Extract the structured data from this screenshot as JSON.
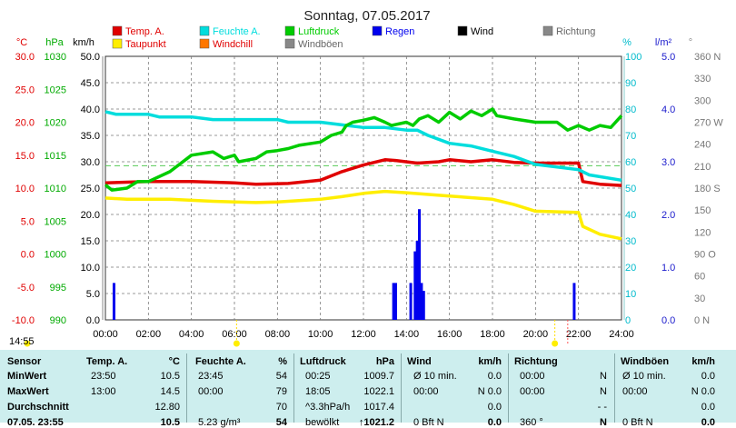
{
  "chart_data": {
    "type": "line",
    "title": "Sonntag, 07.05.2017",
    "x": {
      "ticks": [
        "00:00",
        "02:00",
        "04:00",
        "06:00",
        "08:00",
        "10:00",
        "12:00",
        "14:00",
        "16:00",
        "18:00",
        "20:00",
        "22:00",
        "24:00"
      ],
      "min": 0,
      "max": 24
    },
    "axes": {
      "temp": {
        "unit": "°C",
        "ticks": [
          "30.0",
          "25.0",
          "20.0",
          "15.0",
          "10.0",
          "5.0",
          "0.0",
          "-5.0",
          "-10.0"
        ],
        "color": "#e00000",
        "min": -10,
        "max": 30
      },
      "hpa": {
        "unit": "hPa",
        "ticks": [
          "1030",
          "1025",
          "1020",
          "1015",
          "1010",
          "1005",
          "1000",
          "995",
          "990"
        ],
        "color": "#00aa00",
        "min": 990,
        "max": 1030
      },
      "kmh": {
        "unit": "km/h",
        "ticks": [
          "50.0",
          "45.0",
          "40.0",
          "35.0",
          "30.0",
          "25.0",
          "20.0",
          "15.0",
          "10.0",
          "5.0",
          "0.0"
        ],
        "color": "#000000",
        "min": 0,
        "max": 50
      },
      "pct": {
        "unit": "%",
        "ticks": [
          "100",
          "90",
          "80",
          "70",
          "60",
          "50",
          "40",
          "30",
          "20",
          "10",
          "0"
        ],
        "color": "#00bbcc",
        "min": 0,
        "max": 100
      },
      "lm2": {
        "unit": "l/m²",
        "ticks": [
          "5.0",
          "4.0",
          "3.0",
          "2.0",
          "1.0",
          "0.0"
        ],
        "color": "#1a1acc",
        "min": 0,
        "max": 5
      },
      "deg": {
        "unit": "°",
        "ticks": [
          "360 N",
          "330",
          "300",
          "270 W",
          "240",
          "210",
          "180 S",
          "150",
          "120",
          "90 O",
          "60",
          "30",
          "0 N"
        ],
        "color": "#888888",
        "min": 0,
        "max": 360
      }
    },
    "legend": [
      {
        "label": "Temp. A.",
        "color": "#e00000"
      },
      {
        "label": "Feuchte A.",
        "color": "#00dddd"
      },
      {
        "label": "Luftdruck",
        "color": "#00cc00"
      },
      {
        "label": "Regen",
        "color": "#0000ee"
      },
      {
        "label": "Wind",
        "color": "#000000"
      },
      {
        "label": "Richtung",
        "color": "#888888"
      },
      {
        "label": "Taupunkt",
        "color": "#ffee00"
      },
      {
        "label": "Windchill",
        "color": "#ff7700"
      },
      {
        "label": "Windböen",
        "color": "#888888"
      }
    ],
    "series": [
      {
        "name": "Temp. A.",
        "axis": "temp",
        "color": "#e00000",
        "points": [
          [
            0,
            10.8
          ],
          [
            2,
            11
          ],
          [
            4,
            11
          ],
          [
            6,
            10.8
          ],
          [
            7,
            10.6
          ],
          [
            8.5,
            10.7
          ],
          [
            10,
            11.2
          ],
          [
            11,
            12.5
          ],
          [
            12,
            13.5
          ],
          [
            13,
            14.3
          ],
          [
            13.5,
            14.2
          ],
          [
            14.5,
            13.8
          ],
          [
            15.5,
            14
          ],
          [
            16,
            14.3
          ],
          [
            17,
            14
          ],
          [
            18,
            14.3
          ],
          [
            19,
            13.9
          ],
          [
            20,
            13.8
          ],
          [
            21,
            13.8
          ],
          [
            22,
            13.8
          ],
          [
            22.2,
            11
          ],
          [
            23,
            10.6
          ],
          [
            24,
            10.4
          ]
        ]
      },
      {
        "name": "Feuchte A.",
        "axis": "pct",
        "color": "#00dddd",
        "points": [
          [
            0,
            79
          ],
          [
            0.5,
            78
          ],
          [
            2,
            78
          ],
          [
            2.5,
            77
          ],
          [
            4,
            77
          ],
          [
            5,
            76
          ],
          [
            8,
            76
          ],
          [
            8.5,
            75
          ],
          [
            10,
            75
          ],
          [
            11,
            74
          ],
          [
            12,
            73
          ],
          [
            13,
            73
          ],
          [
            14,
            72
          ],
          [
            14.5,
            72
          ],
          [
            15,
            70
          ],
          [
            16,
            67
          ],
          [
            17,
            66
          ],
          [
            18,
            64
          ],
          [
            19,
            62
          ],
          [
            20,
            59
          ],
          [
            21,
            58
          ],
          [
            22,
            57
          ],
          [
            22.5,
            55
          ],
          [
            24,
            53
          ]
        ]
      },
      {
        "name": "Luftdruck",
        "axis": "hpa",
        "color": "#00cc00",
        "points": [
          [
            0,
            1010.5
          ],
          [
            0.3,
            1009.7
          ],
          [
            1,
            1010
          ],
          [
            1.5,
            1011
          ],
          [
            2,
            1011
          ],
          [
            3,
            1012.5
          ],
          [
            4,
            1015
          ],
          [
            5,
            1015.5
          ],
          [
            5.5,
            1014.5
          ],
          [
            6,
            1015
          ],
          [
            6.2,
            1014
          ],
          [
            7,
            1014.5
          ],
          [
            7.5,
            1015.5
          ],
          [
            8,
            1015.7
          ],
          [
            8.5,
            1016
          ],
          [
            9,
            1016.5
          ],
          [
            10,
            1017
          ],
          [
            10.5,
            1018
          ],
          [
            11,
            1018.5
          ],
          [
            11.2,
            1019.5
          ],
          [
            11.5,
            1020
          ],
          [
            12,
            1020.3
          ],
          [
            12.5,
            1020.7
          ],
          [
            13,
            1020
          ],
          [
            13.3,
            1019.5
          ],
          [
            14,
            1020
          ],
          [
            14.3,
            1019.5
          ],
          [
            14.6,
            1020.5
          ],
          [
            15,
            1021
          ],
          [
            15.5,
            1020
          ],
          [
            16,
            1021.5
          ],
          [
            16.5,
            1020.5
          ],
          [
            17,
            1021.7
          ],
          [
            17.5,
            1021
          ],
          [
            18,
            1022
          ],
          [
            18.2,
            1021
          ],
          [
            19,
            1020.5
          ],
          [
            20,
            1020
          ],
          [
            21,
            1020
          ],
          [
            21.5,
            1018.8
          ],
          [
            22,
            1019.5
          ],
          [
            22.5,
            1018.8
          ],
          [
            23,
            1019.5
          ],
          [
            23.5,
            1019.2
          ],
          [
            24,
            1021
          ]
        ]
      },
      {
        "name": "Taupunkt",
        "axis": "temp",
        "color": "#ffee00",
        "points": [
          [
            0,
            8.5
          ],
          [
            1,
            8.3
          ],
          [
            3,
            8.3
          ],
          [
            5,
            8
          ],
          [
            7,
            7.8
          ],
          [
            8,
            7.9
          ],
          [
            10,
            8.3
          ],
          [
            11,
            8.7
          ],
          [
            12,
            9.2
          ],
          [
            13,
            9.5
          ],
          [
            14,
            9.3
          ],
          [
            16,
            8.8
          ],
          [
            18,
            8.3
          ],
          [
            19,
            7.5
          ],
          [
            20,
            6.5
          ],
          [
            22,
            6.3
          ],
          [
            22.2,
            4.2
          ],
          [
            23,
            3
          ],
          [
            24,
            2.3
          ]
        ]
      }
    ],
    "reference_lines": [
      {
        "axis": "temp",
        "value": 13.4,
        "color": "#55cc55",
        "style": "dashed"
      }
    ],
    "bars": {
      "name": "Regen",
      "axis": "kmh",
      "color": "#0000ee",
      "values": [
        [
          0.4,
          7
        ],
        [
          13.4,
          7
        ],
        [
          13.5,
          7
        ],
        [
          14.2,
          7
        ],
        [
          14.4,
          13
        ],
        [
          14.5,
          15
        ],
        [
          14.6,
          21
        ],
        [
          14.7,
          7
        ],
        [
          14.8,
          5.5
        ],
        [
          21.8,
          7
        ]
      ]
    },
    "markers": {
      "yellow_x": [
        6.1,
        20.9
      ],
      "red_x": [
        21.5
      ]
    }
  },
  "stamp": "14:55",
  "stats": {
    "headers": [
      "Sensor",
      "Temp. A.",
      "°C",
      "Feuchte A.",
      "%",
      "Luftdruck",
      "hPa",
      "Wind",
      "km/h",
      "Richtung",
      "Windböen",
      "km/h"
    ],
    "rows": [
      {
        "label": "MinWert",
        "cells": [
          "23:50",
          "10.5",
          "23:45",
          "54",
          "00:25",
          "1009.7",
          "Ø 10 min.",
          "0.0",
          "00:00",
          "N",
          "Ø 10 min.",
          "0.0"
        ]
      },
      {
        "label": "MaxWert",
        "cells": [
          "13:00",
          "14.5",
          "00:00",
          "79",
          "18:05",
          "1022.1",
          "00:00",
          "N 0.0",
          "00:00",
          "N",
          "00:00",
          "N 0.0"
        ]
      },
      {
        "label": "Durchschnitt",
        "cells": [
          "",
          "12.80",
          "",
          "70",
          "^3.3hPa/h",
          "1017.4",
          "",
          "0.0",
          "",
          "- -",
          "",
          "0.0"
        ]
      },
      {
        "label": "07.05. 23:55",
        "cells": [
          "",
          "10.5",
          "5.23 g/m³",
          "54",
          "bewölkt",
          "↑1021.2",
          "0 Bft N",
          "0.0",
          "360 °",
          "N",
          "0 Bft N",
          "0.0"
        ]
      }
    ]
  }
}
